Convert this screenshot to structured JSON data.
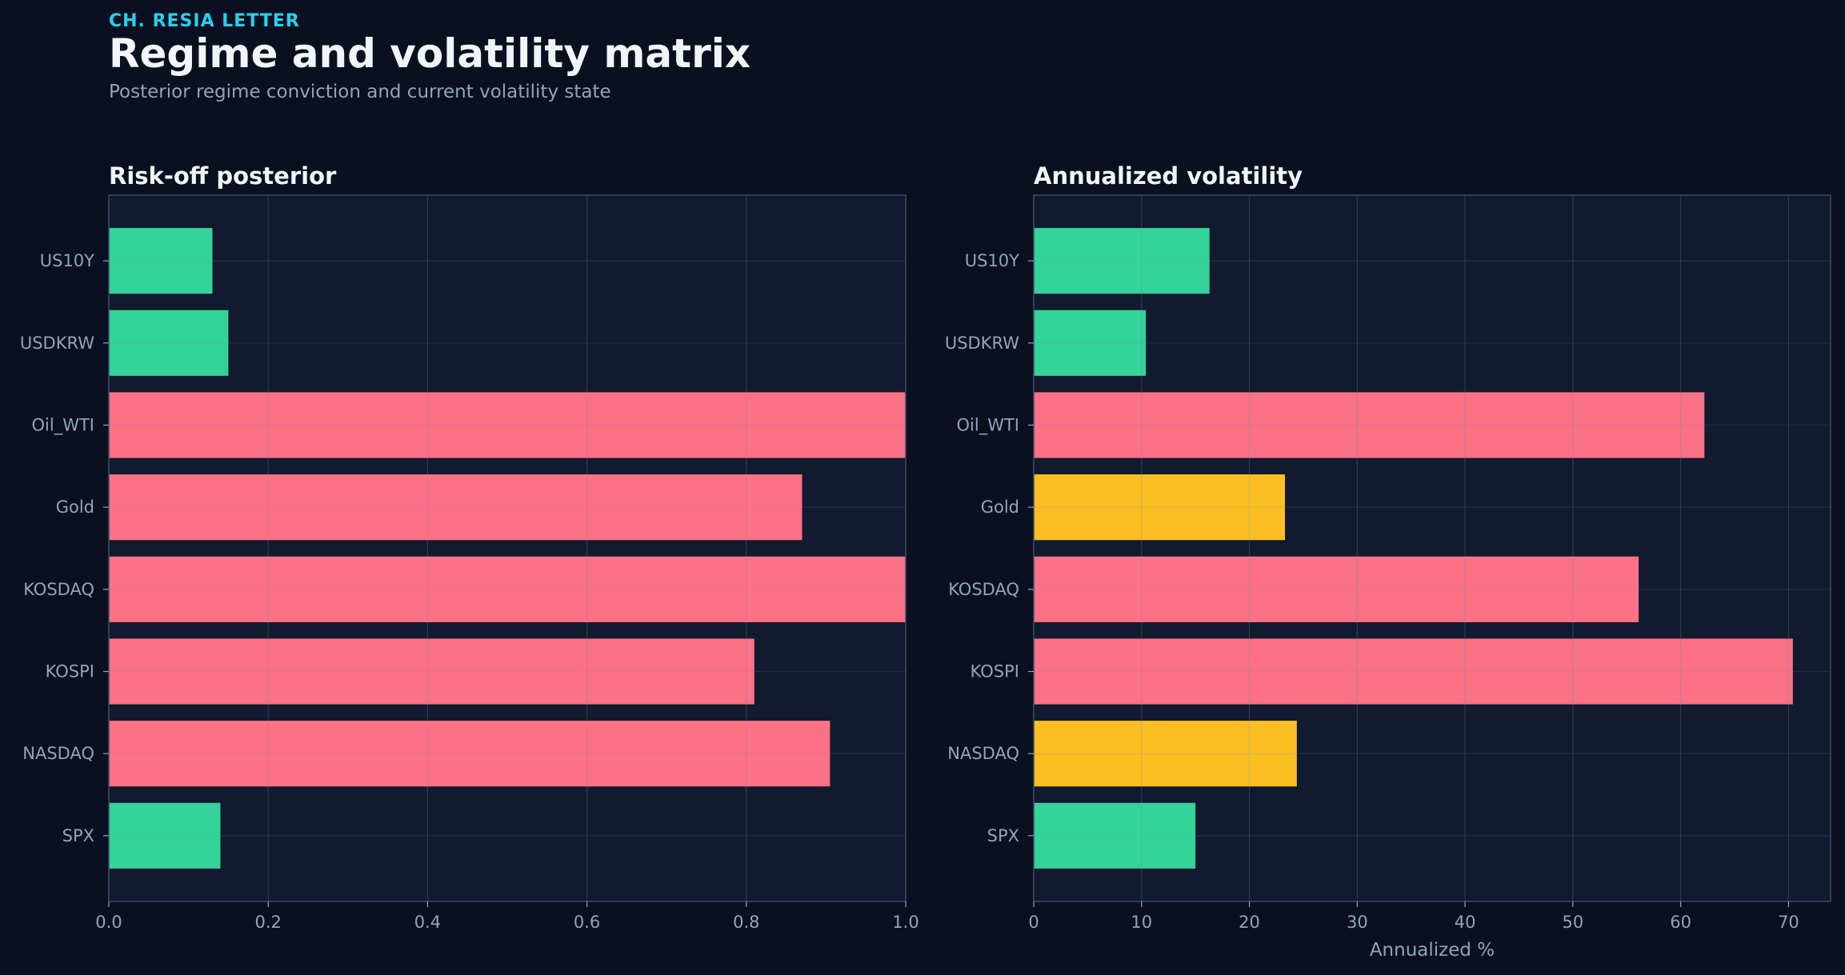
{
  "header": {
    "kicker": "CH. RESIA LETTER",
    "title": "Regime and volatility matrix",
    "subtitle": "Posterior regime conviction and current volatility state"
  },
  "colors": {
    "background": "#0a1020",
    "panel": "#111a2e",
    "frame": "#3b4a6b",
    "grid": "#2a3650",
    "green": "#34d399",
    "red": "#fb7185",
    "yellow": "#fbbf24"
  },
  "chart_data": [
    {
      "type": "bar",
      "orientation": "horizontal",
      "title": "Risk-off posterior",
      "xlabel": "",
      "ylabel": "",
      "categories": [
        "US10Y",
        "USDKRW",
        "Oil_WTI",
        "Gold",
        "KOSDAQ",
        "KOSPI",
        "NASDAQ",
        "SPX"
      ],
      "values": [
        0.13,
        0.15,
        1.0,
        0.87,
        1.0,
        0.81,
        0.905,
        0.14
      ],
      "bar_colors": [
        "green",
        "green",
        "red",
        "red",
        "red",
        "red",
        "red",
        "green"
      ],
      "xlim": [
        0,
        1.0
      ],
      "xticks": [
        0.0,
        0.2,
        0.4,
        0.6,
        0.8,
        1.0
      ],
      "xtick_labels": [
        "0.0",
        "0.2",
        "0.4",
        "0.6",
        "0.8",
        "1.0"
      ],
      "grid": true
    },
    {
      "type": "bar",
      "orientation": "horizontal",
      "title": "Annualized volatility",
      "xlabel": "Annualized %",
      "ylabel": "",
      "categories": [
        "US10Y",
        "USDKRW",
        "Oil_WTI",
        "Gold",
        "KOSDAQ",
        "KOSPI",
        "NASDAQ",
        "SPX"
      ],
      "values": [
        16.3,
        10.4,
        62.2,
        23.3,
        56.1,
        70.4,
        24.4,
        15.0
      ],
      "bar_colors": [
        "green",
        "green",
        "red",
        "yellow",
        "red",
        "red",
        "yellow",
        "green"
      ],
      "xlim": [
        0,
        73.9
      ],
      "xticks": [
        0,
        10,
        20,
        30,
        40,
        50,
        60,
        70
      ],
      "xtick_labels": [
        "0",
        "10",
        "20",
        "30",
        "40",
        "50",
        "60",
        "70"
      ],
      "grid": true
    }
  ]
}
